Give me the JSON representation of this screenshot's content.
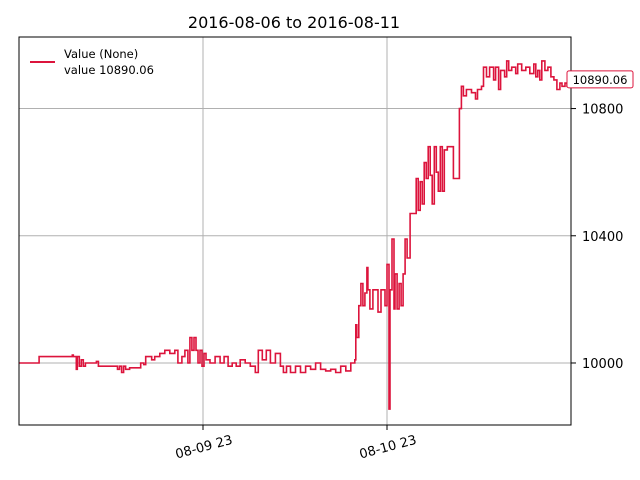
{
  "chart_data": {
    "type": "line",
    "title": "2016-08-06 to 2016-08-11",
    "xlabel": "",
    "ylabel": "",
    "y_axis_side": "right",
    "ylim": [
      9805,
      11025
    ],
    "yticks": [
      10000,
      10400,
      10800
    ],
    "x_tick_labels": [
      "08-09 23",
      "08-10 23"
    ],
    "grid": true,
    "legend": {
      "placement": "top-left",
      "entries": [
        "Value (None)",
        "value 10890.06"
      ]
    },
    "last_value_label": "10890.06",
    "series": [
      {
        "name": "Value (None)",
        "color": "#dc143c",
        "points": [
          [
            0,
            10000
          ],
          [
            19,
            10000
          ],
          [
            20,
            10020
          ],
          [
            52,
            10020
          ],
          [
            53,
            10025
          ],
          [
            54,
            10020
          ],
          [
            56,
            10020
          ],
          [
            57,
            9980
          ],
          [
            58,
            10020
          ],
          [
            60,
            9990
          ],
          [
            62,
            10010
          ],
          [
            64,
            9990
          ],
          [
            66,
            10000
          ],
          [
            75,
            10000
          ],
          [
            77,
            10005
          ],
          [
            79,
            9990
          ],
          [
            97,
            9990
          ],
          [
            98,
            9980
          ],
          [
            100,
            9990
          ],
          [
            102,
            9970
          ],
          [
            104,
            9990
          ],
          [
            106,
            9980
          ],
          [
            110,
            9985
          ],
          [
            120,
            9985
          ],
          [
            121,
            10000
          ],
          [
            124,
            9995
          ],
          [
            126,
            10020
          ],
          [
            130,
            10020
          ],
          [
            132,
            10010
          ],
          [
            135,
            10020
          ],
          [
            140,
            10030
          ],
          [
            145,
            10040
          ],
          [
            150,
            10030
          ],
          [
            155,
            10040
          ],
          [
            158,
            10000
          ],
          [
            162,
            10020
          ],
          [
            165,
            10040
          ],
          [
            168,
            10000
          ],
          [
            170,
            10080
          ],
          [
            172,
            10040
          ],
          [
            174,
            10080
          ],
          [
            176,
            10040
          ],
          [
            178,
            10000
          ],
          [
            180,
            10040
          ],
          [
            182,
            9990
          ],
          [
            184,
            10030
          ],
          [
            186,
            10010
          ],
          [
            190,
            10000
          ],
          [
            195,
            10020
          ],
          [
            200,
            10000
          ],
          [
            204,
            10020
          ],
          [
            208,
            9990
          ],
          [
            212,
            10000
          ],
          [
            216,
            9990
          ],
          [
            220,
            10010
          ],
          [
            225,
            10000
          ],
          [
            230,
            9990
          ],
          [
            235,
            9970
          ],
          [
            238,
            10040
          ],
          [
            242,
            10010
          ],
          [
            246,
            10040
          ],
          [
            250,
            10000
          ],
          [
            255,
            10030
          ],
          [
            260,
            9990
          ],
          [
            263,
            9970
          ],
          [
            266,
            9990
          ],
          [
            270,
            9970
          ],
          [
            275,
            9990
          ],
          [
            280,
            9970
          ],
          [
            285,
            9990
          ],
          [
            290,
            9980
          ],
          [
            295,
            10000
          ],
          [
            300,
            9980
          ],
          [
            305,
            9975
          ],
          [
            310,
            9980
          ],
          [
            315,
            9970
          ],
          [
            320,
            9990
          ],
          [
            325,
            9975
          ],
          [
            330,
            10000
          ],
          [
            334,
            10010
          ],
          [
            335,
            10120
          ],
          [
            336,
            10080
          ],
          [
            338,
            10180
          ],
          [
            340,
            10250
          ],
          [
            342,
            10180
          ],
          [
            344,
            10220
          ],
          [
            346,
            10300
          ],
          [
            347,
            10230
          ],
          [
            349,
            10170
          ],
          [
            351,
            10170
          ],
          [
            352,
            10230
          ],
          [
            355,
            10230
          ],
          [
            357,
            10160
          ],
          [
            360,
            10230
          ],
          [
            364,
            10180
          ],
          [
            366,
            10310
          ],
          [
            368,
            9855
          ],
          [
            369,
            10230
          ],
          [
            371,
            10390
          ],
          [
            373,
            10170
          ],
          [
            374,
            10280
          ],
          [
            376,
            10170
          ],
          [
            378,
            10250
          ],
          [
            380,
            10180
          ],
          [
            382,
            10280
          ],
          [
            384,
            10390
          ],
          [
            386,
            10330
          ],
          [
            389,
            10470
          ],
          [
            394,
            10470
          ],
          [
            395,
            10580
          ],
          [
            397,
            10480
          ],
          [
            399,
            10570
          ],
          [
            401,
            10500
          ],
          [
            403,
            10630
          ],
          [
            405,
            10580
          ],
          [
            407,
            10680
          ],
          [
            409,
            10590
          ],
          [
            411,
            10500
          ],
          [
            413,
            10680
          ],
          [
            415,
            10600
          ],
          [
            417,
            10540
          ],
          [
            419,
            10680
          ],
          [
            421,
            10540
          ],
          [
            423,
            10670
          ],
          [
            426,
            10680
          ],
          [
            430,
            10680
          ],
          [
            432,
            10580
          ],
          [
            437,
            10580
          ],
          [
            438,
            10800
          ],
          [
            440,
            10870
          ],
          [
            442,
            10840
          ],
          [
            445,
            10860
          ],
          [
            450,
            10850
          ],
          [
            454,
            10830
          ],
          [
            456,
            10860
          ],
          [
            460,
            10870
          ],
          [
            462,
            10930
          ],
          [
            465,
            10900
          ],
          [
            468,
            10930
          ],
          [
            472,
            10890
          ],
          [
            474,
            10930
          ],
          [
            477,
            10860
          ],
          [
            479,
            10920
          ],
          [
            483,
            10900
          ],
          [
            485,
            10950
          ],
          [
            487,
            10920
          ],
          [
            490,
            10930
          ],
          [
            494,
            10910
          ],
          [
            496,
            10940
          ],
          [
            500,
            10920
          ],
          [
            504,
            10930
          ],
          [
            508,
            10910
          ],
          [
            512,
            10940
          ],
          [
            514,
            10900
          ],
          [
            516,
            10920
          ],
          [
            518,
            10890
          ],
          [
            520,
            10950
          ],
          [
            523,
            10920
          ],
          [
            526,
            10930
          ],
          [
            529,
            10900
          ],
          [
            532,
            10890
          ],
          [
            535,
            10860
          ],
          [
            538,
            10880
          ],
          [
            540,
            10870
          ],
          [
            543,
            10880
          ],
          [
            545,
            10870
          ],
          [
            549,
            10890.06
          ]
        ]
      }
    ]
  }
}
